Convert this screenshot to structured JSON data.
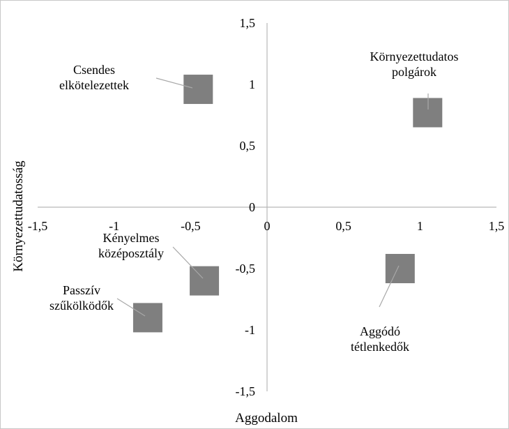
{
  "chart_data": {
    "type": "scatter",
    "title": "",
    "xlabel": "Aggodalom",
    "ylabel": "Környezettudatosság",
    "xlim": [
      -1.5,
      1.5
    ],
    "ylim": [
      -1.5,
      1.5
    ],
    "x_ticks": [
      -1.5,
      -1,
      -0.5,
      0,
      0.5,
      1,
      1.5
    ],
    "y_ticks": [
      -1.5,
      -1,
      -0.5,
      0,
      0.5,
      1,
      1.5
    ],
    "x_tick_labels": [
      "-1,5",
      "-1",
      "-0,5",
      "0",
      "0,5",
      "1",
      "1,5"
    ],
    "y_tick_labels": [
      "-1,5",
      "-1",
      "-0,5",
      "0",
      "0,5",
      "1",
      "1,5"
    ],
    "grid": false,
    "legend": "none",
    "marker": {
      "shape": "square",
      "color": "#7f7f7f"
    },
    "points": [
      {
        "label": [
          "Csendes",
          "elkötelezettek"
        ],
        "x": -0.45,
        "y": 0.96
      },
      {
        "label": [
          "Környezettudatos",
          "polgárok"
        ],
        "x": 1.05,
        "y": 0.77
      },
      {
        "label": [
          "Kényelmes",
          "középosztály"
        ],
        "x": -0.41,
        "y": -0.6
      },
      {
        "label": [
          "Passzív",
          "szűkölködők"
        ],
        "x": -0.78,
        "y": -0.9
      },
      {
        "label": [
          "Aggódó",
          "tétlenkedők"
        ],
        "x": 0.87,
        "y": -0.5
      }
    ]
  }
}
